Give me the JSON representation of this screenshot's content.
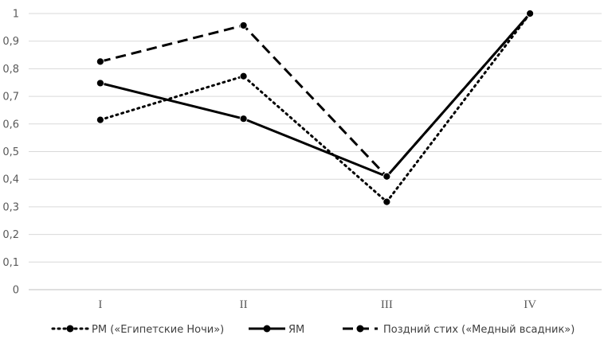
{
  "chart_data": {
    "type": "line",
    "title": "",
    "xlabel": "",
    "ylabel": "",
    "categories": [
      "I",
      "II",
      "III",
      "IV"
    ],
    "ylim": [
      0,
      1
    ],
    "yticks": [
      "0",
      "0,1",
      "0,2",
      "0,3",
      "0,4",
      "0,5",
      "0,6",
      "0,7",
      "0,8",
      "0,9",
      "1"
    ],
    "grid": true,
    "legend_position": "bottom",
    "series": [
      {
        "name": "РМ («Египетские Ночи»)",
        "values": [
          0.615,
          0.773,
          0.318,
          1.0
        ],
        "style": "dotted",
        "color": "#000000"
      },
      {
        "name": "ЯМ",
        "values": [
          0.748,
          0.619,
          0.41,
          1.0
        ],
        "style": "solid",
        "color": "#000000"
      },
      {
        "name": "Поздний стих («Медный всадник»)",
        "values": [
          0.826,
          0.957,
          0.41,
          1.0
        ],
        "style": "dashed",
        "color": "#000000"
      }
    ]
  }
}
